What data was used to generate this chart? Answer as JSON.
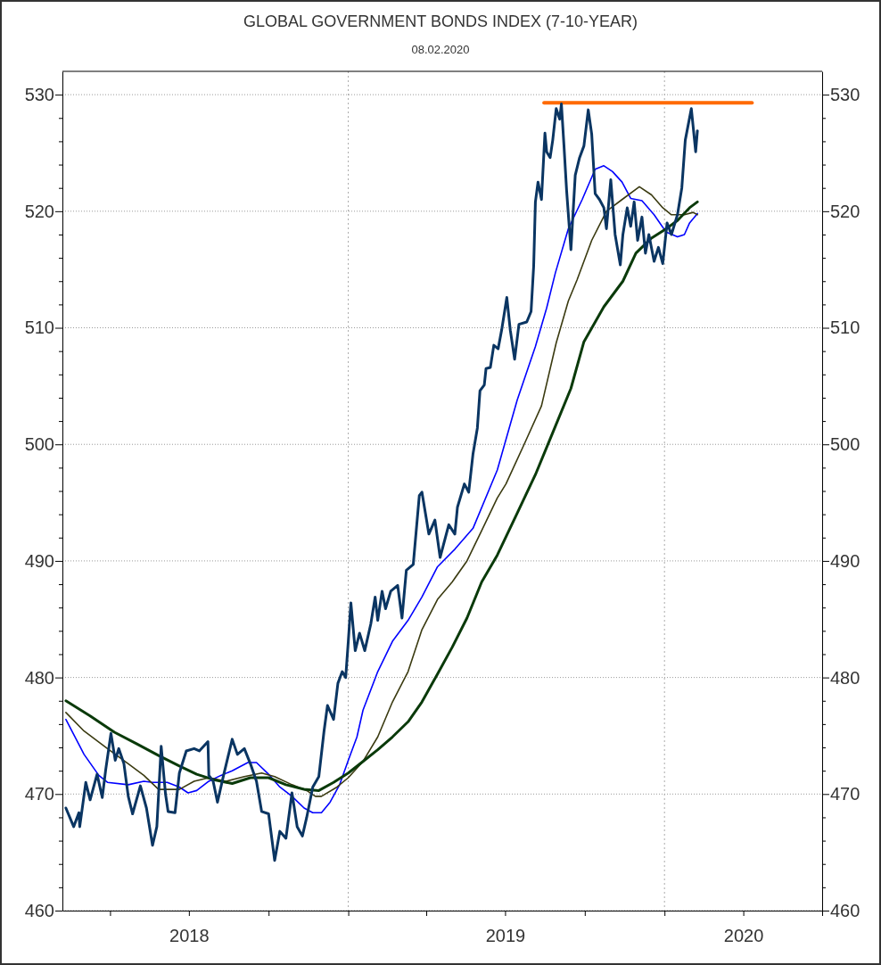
{
  "chart_data": {
    "type": "line",
    "title": "GLOBAL GOVERNMENT BONDS INDEX (7-10-YEAR)",
    "subtitle": "08.02.2020",
    "xlim": [
      "2018-02-05",
      "2020-07-01"
    ],
    "xticks": [
      {
        "value": "2018-04-01",
        "label": null
      },
      {
        "value": "2018-07-01",
        "label": "2018"
      },
      {
        "value": "2018-10-01",
        "label": null
      },
      {
        "value": "2019-01-01",
        "label": null
      },
      {
        "value": "2019-04-01",
        "label": null
      },
      {
        "value": "2019-07-01",
        "label": "2019"
      },
      {
        "value": "2019-10-01",
        "label": null
      },
      {
        "value": "2020-01-01",
        "label": null
      },
      {
        "value": "2020-04-01",
        "label": "2020"
      },
      {
        "value": "2020-07-01",
        "label": null
      }
    ],
    "ylim": [
      460,
      532
    ],
    "yticks": [
      460,
      {
        "value": 462,
        "label": null
      },
      {
        "value": 464,
        "label": null
      },
      {
        "value": 466,
        "label": null
      },
      {
        "value": 468,
        "label": null
      },
      470,
      {
        "value": 472,
        "label": null
      },
      {
        "value": 474,
        "label": null
      },
      {
        "value": 476,
        "label": null
      },
      {
        "value": 478,
        "label": null
      },
      480,
      {
        "value": 482,
        "label": null
      },
      {
        "value": 484,
        "label": null
      },
      {
        "value": 486,
        "label": null
      },
      {
        "value": 488,
        "label": null
      },
      490,
      {
        "value": 492,
        "label": null
      },
      {
        "value": 494,
        "label": null
      },
      {
        "value": 496,
        "label": null
      },
      {
        "value": 498,
        "label": null
      },
      500,
      {
        "value": 502,
        "label": null
      },
      {
        "value": 504,
        "label": null
      },
      {
        "value": 506,
        "label": null
      },
      {
        "value": 508,
        "label": null
      },
      510,
      {
        "value": 512,
        "label": null
      },
      {
        "value": 514,
        "label": null
      },
      {
        "value": 516,
        "label": null
      },
      {
        "value": 518,
        "label": null
      },
      520,
      {
        "value": 522,
        "label": null
      },
      {
        "value": 524,
        "label": null
      },
      {
        "value": 526,
        "label": null
      },
      {
        "value": 528,
        "label": null
      },
      530
    ],
    "y2lim": [
      460,
      532
    ],
    "y2ticks": [
      460,
      {
        "value": 462,
        "label": null
      },
      {
        "value": 464,
        "label": null
      },
      {
        "value": 466,
        "label": null
      },
      {
        "value": 468,
        "label": null
      },
      470,
      {
        "value": 472,
        "label": null
      },
      {
        "value": 474,
        "label": null
      },
      {
        "value": 476,
        "label": null
      },
      {
        "value": 478,
        "label": null
      },
      480,
      {
        "value": 482,
        "label": null
      },
      {
        "value": 484,
        "label": null
      },
      {
        "value": 486,
        "label": null
      },
      {
        "value": 488,
        "label": null
      },
      490,
      {
        "value": 492,
        "label": null
      },
      {
        "value": 494,
        "label": null
      },
      {
        "value": 496,
        "label": null
      },
      {
        "value": 498,
        "label": null
      },
      500,
      {
        "value": 502,
        "label": null
      },
      {
        "value": 504,
        "label": null
      },
      {
        "value": 506,
        "label": null
      },
      {
        "value": 508,
        "label": null
      },
      510,
      {
        "value": 512,
        "label": null
      },
      {
        "value": 514,
        "label": null
      },
      {
        "value": 516,
        "label": null
      },
      {
        "value": 518,
        "label": null
      },
      520,
      {
        "value": 522,
        "label": null
      },
      {
        "value": 524,
        "label": null
      },
      {
        "value": 526,
        "label": null
      },
      {
        "value": 528,
        "label": null
      },
      530
    ],
    "grid": "y",
    "marker": "none",
    "line_style": "solid",
    "ref_lines": [
      {
        "axis": "x",
        "value": "2019-01-01",
        "label": null,
        "color": "#aaaaaa",
        "line_style": "dotted"
      },
      {
        "axis": "x",
        "value": "2020-01-01",
        "label": null,
        "color": "#aaaaaa",
        "line_style": "dotted"
      }
    ],
    "series": [
      {
        "color": "#ff6a00",
        "x": [
          "2019-08-15",
          "2020-04-11"
        ],
        "values": [
          529.3,
          529.3
        ]
      },
      {
        "color": "#0000ff",
        "x": [
          "2018-02-09",
          "2018-03-02",
          "2018-03-19",
          "2018-03-29",
          "2018-04-22",
          "2018-05-10",
          "2018-05-20",
          "2018-06-06",
          "2018-06-20",
          "2018-06-30",
          "2018-07-10",
          "2018-07-24",
          "2018-08-07",
          "2018-08-20",
          "2018-09-07",
          "2018-09-17",
          "2018-10-01",
          "2018-10-14",
          "2018-10-28",
          "2018-11-11",
          "2018-11-21",
          "2018-12-01",
          "2018-12-11",
          "2018-12-22",
          "2019-01-01",
          "2019-01-11",
          "2019-01-18",
          "2019-02-04",
          "2019-02-21",
          "2019-03-11",
          "2019-03-27",
          "2019-04-14",
          "2019-05-04",
          "2019-05-25",
          "2019-06-22",
          "2019-07-15",
          "2019-08-05",
          "2019-08-18",
          "2019-08-28",
          "2019-09-12",
          "2019-09-28",
          "2019-10-13",
          "2019-10-23",
          "2019-11-02",
          "2019-11-13",
          "2019-11-23",
          "2019-12-06",
          "2019-12-20",
          "2020-01-03",
          "2020-01-16",
          "2020-01-24",
          "2020-01-30",
          "2020-02-08"
        ],
        "values": [
          476.4,
          473.4,
          471.6,
          471.0,
          470.8,
          471.1,
          471.0,
          471.0,
          470.6,
          470.1,
          470.3,
          471.1,
          471.6,
          472.0,
          472.7,
          472.7,
          471.7,
          470.6,
          469.8,
          468.8,
          468.4,
          468.4,
          469.3,
          470.8,
          472.9,
          474.9,
          477.2,
          480.5,
          483.1,
          484.9,
          486.9,
          489.5,
          491.0,
          492.8,
          497.8,
          503.8,
          508.4,
          511.7,
          514.7,
          518.5,
          521.0,
          523.6,
          523.9,
          523.4,
          522.5,
          521.1,
          520.9,
          519.7,
          518.2,
          517.8,
          518.0,
          519.0,
          519.8
        ]
      },
      {
        "color": "#3a3a10",
        "x": [
          "2018-02-09",
          "2018-03-02",
          "2018-03-29",
          "2018-04-22",
          "2018-05-10",
          "2018-05-27",
          "2018-06-20",
          "2018-07-07",
          "2018-07-24",
          "2018-08-13",
          "2018-09-03",
          "2018-09-23",
          "2018-10-08",
          "2018-10-28",
          "2018-11-14",
          "2018-11-24",
          "2018-12-01",
          "2018-12-19",
          "2019-01-01",
          "2019-01-18",
          "2019-02-04",
          "2019-02-21",
          "2019-03-11",
          "2019-03-27",
          "2019-04-14",
          "2019-05-01",
          "2019-05-18",
          "2019-06-04",
          "2019-06-22",
          "2019-07-02",
          "2019-07-23",
          "2019-08-12",
          "2019-08-29",
          "2019-09-12",
          "2019-09-22",
          "2019-10-09",
          "2019-10-26",
          "2019-11-13",
          "2019-12-03",
          "2019-12-17",
          "2019-12-30",
          "2020-01-09",
          "2020-01-24",
          "2020-02-03",
          "2020-02-08"
        ],
        "values": [
          477.0,
          475.4,
          473.9,
          472.6,
          471.6,
          470.4,
          470.4,
          471.1,
          471.4,
          471.1,
          471.5,
          471.8,
          471.5,
          470.8,
          470.3,
          469.8,
          469.8,
          470.6,
          471.4,
          472.8,
          474.9,
          477.9,
          480.5,
          484.1,
          486.7,
          488.2,
          490.0,
          492.6,
          495.4,
          496.6,
          500.0,
          503.3,
          508.7,
          512.3,
          514.1,
          517.5,
          520.0,
          521.0,
          522.1,
          521.4,
          520.3,
          519.7,
          519.7,
          519.9,
          519.7
        ]
      },
      {
        "color": "#0a3a0a",
        "x": [
          "2018-02-09",
          "2018-03-09",
          "2018-04-06",
          "2018-05-02",
          "2018-05-27",
          "2018-06-20",
          "2018-07-10",
          "2018-07-31",
          "2018-08-20",
          "2018-09-10",
          "2018-10-01",
          "2018-10-21",
          "2018-11-11",
          "2018-11-28",
          "2018-12-15",
          "2019-01-01",
          "2019-01-18",
          "2019-02-04",
          "2019-02-21",
          "2019-03-11",
          "2019-03-27",
          "2019-04-14",
          "2019-05-01",
          "2019-05-18",
          "2019-06-04",
          "2019-06-22",
          "2019-07-15",
          "2019-08-05",
          "2019-08-25",
          "2019-09-15",
          "2019-09-30",
          "2019-10-23",
          "2019-11-14",
          "2019-11-29",
          "2019-12-17",
          "2020-01-03",
          "2020-01-16",
          "2020-01-30",
          "2020-02-08"
        ],
        "values": [
          478.0,
          476.7,
          475.3,
          474.3,
          473.3,
          472.4,
          471.7,
          471.2,
          470.9,
          471.4,
          471.4,
          470.8,
          470.4,
          470.3,
          471.0,
          471.8,
          472.8,
          473.8,
          474.9,
          476.2,
          477.9,
          480.3,
          482.6,
          485.1,
          488.2,
          490.5,
          494.1,
          497.4,
          501.0,
          504.8,
          508.8,
          511.8,
          514.0,
          516.4,
          517.7,
          518.5,
          519.2,
          520.3,
          520.8
        ]
      },
      {
        "color": "#0a3562",
        "x": [
          "2018-02-09",
          "2018-02-18",
          "2018-02-24",
          "2018-02-25",
          "2018-03-04",
          "2018-03-09",
          "2018-03-17",
          "2018-03-23",
          "2018-03-27",
          "2018-04-02",
          "2018-04-07",
          "2018-04-11",
          "2018-04-17",
          "2018-04-22",
          "2018-04-27",
          "2018-05-06",
          "2018-05-13",
          "2018-05-20",
          "2018-05-25",
          "2018-05-30",
          "2018-06-04",
          "2018-06-07",
          "2018-06-15",
          "2018-06-20",
          "2018-06-28",
          "2018-07-07",
          "2018-07-13",
          "2018-07-23",
          "2018-07-24",
          "2018-07-29",
          "2018-08-03",
          "2018-08-10",
          "2018-08-20",
          "2018-08-26",
          "2018-09-03",
          "2018-09-10",
          "2018-09-17",
          "2018-09-23",
          "2018-10-01",
          "2018-10-08",
          "2018-10-14",
          "2018-10-21",
          "2018-10-28",
          "2018-11-03",
          "2018-11-09",
          "2018-11-14",
          "2018-11-21",
          "2018-11-28",
          "2018-12-04",
          "2018-12-08",
          "2018-12-15",
          "2018-12-20",
          "2018-12-25",
          "2018-12-29",
          "2019-01-01",
          "2019-01-04",
          "2019-01-09",
          "2019-01-14",
          "2019-01-20",
          "2019-01-27",
          "2019-02-01",
          "2019-02-04",
          "2019-02-09",
          "2019-02-13",
          "2019-02-19",
          "2019-02-27",
          "2019-03-04",
          "2019-03-09",
          "2019-03-17",
          "2019-03-24",
          "2019-03-27",
          "2019-04-04",
          "2019-04-11",
          "2019-04-17",
          "2019-04-27",
          "2019-05-04",
          "2019-05-07",
          "2019-05-15",
          "2019-05-20",
          "2019-05-25",
          "2019-05-30",
          "2019-06-02",
          "2019-06-07",
          "2019-06-09",
          "2019-06-14",
          "2019-06-18",
          "2019-06-23",
          "2019-06-27",
          "2019-07-03",
          "2019-07-07",
          "2019-07-12",
          "2019-07-17",
          "2019-07-26",
          "2019-07-31",
          "2019-08-03",
          "2019-08-05",
          "2019-08-08",
          "2019-08-12",
          "2019-08-16",
          "2019-08-18",
          "2019-08-22",
          "2019-08-25",
          "2019-08-29",
          "2019-09-02",
          "2019-09-04",
          "2019-09-07",
          "2019-09-10",
          "2019-09-15",
          "2019-09-20",
          "2019-09-25",
          "2019-09-30",
          "2019-10-05",
          "2019-10-09",
          "2019-10-13",
          "2019-10-18",
          "2019-10-23",
          "2019-10-26",
          "2019-10-31",
          "2019-11-05",
          "2019-11-11",
          "2019-11-14",
          "2019-11-19",
          "2019-11-23",
          "2019-11-27",
          "2019-12-01",
          "2019-12-06",
          "2019-12-10",
          "2019-12-14",
          "2019-12-20",
          "2019-12-25",
          "2019-12-30",
          "2020-01-04",
          "2020-01-09",
          "2020-01-16",
          "2020-01-21",
          "2020-01-25",
          "2020-02-01",
          "2020-02-06",
          "2020-02-08"
        ],
        "values": [
          468.8,
          467.2,
          468.4,
          467.2,
          471.0,
          469.5,
          471.7,
          469.7,
          472.1,
          475.2,
          472.9,
          473.9,
          472.6,
          469.8,
          468.3,
          470.7,
          468.8,
          465.6,
          467.2,
          474.1,
          470.0,
          468.5,
          468.4,
          471.8,
          473.7,
          473.9,
          473.7,
          474.5,
          471.6,
          471.1,
          469.3,
          471.6,
          474.7,
          473.4,
          473.9,
          472.6,
          471.1,
          468.5,
          468.3,
          464.3,
          466.8,
          466.2,
          470.1,
          467.2,
          466.4,
          468.0,
          470.6,
          471.5,
          475.4,
          477.6,
          476.4,
          479.5,
          480.5,
          480.0,
          483.1,
          486.4,
          482.3,
          483.8,
          482.3,
          484.6,
          486.9,
          484.9,
          487.4,
          485.9,
          487.4,
          487.9,
          485.1,
          489.2,
          489.7,
          495.6,
          495.9,
          492.3,
          493.5,
          490.3,
          493.1,
          492.3,
          494.6,
          496.6,
          495.9,
          499.2,
          501.4,
          504.6,
          505.1,
          506.5,
          506.6,
          508.5,
          508.2,
          509.8,
          512.6,
          509.8,
          507.3,
          510.3,
          510.5,
          511.4,
          515.3,
          520.8,
          522.5,
          521.0,
          526.7,
          525.1,
          524.6,
          526.1,
          528.8,
          527.9,
          529.2,
          525.6,
          521.8,
          516.7,
          523.1,
          524.6,
          525.6,
          528.7,
          526.6,
          521.5,
          521.0,
          520.3,
          518.5,
          522.7,
          518.0,
          515.4,
          518.0,
          520.3,
          518.7,
          520.8,
          517.5,
          519.5,
          516.4,
          518.0,
          515.7,
          516.9,
          515.5,
          519.0,
          518.0,
          519.7,
          522.0,
          526.1,
          528.8,
          525.1,
          526.9
        ]
      }
    ]
  }
}
